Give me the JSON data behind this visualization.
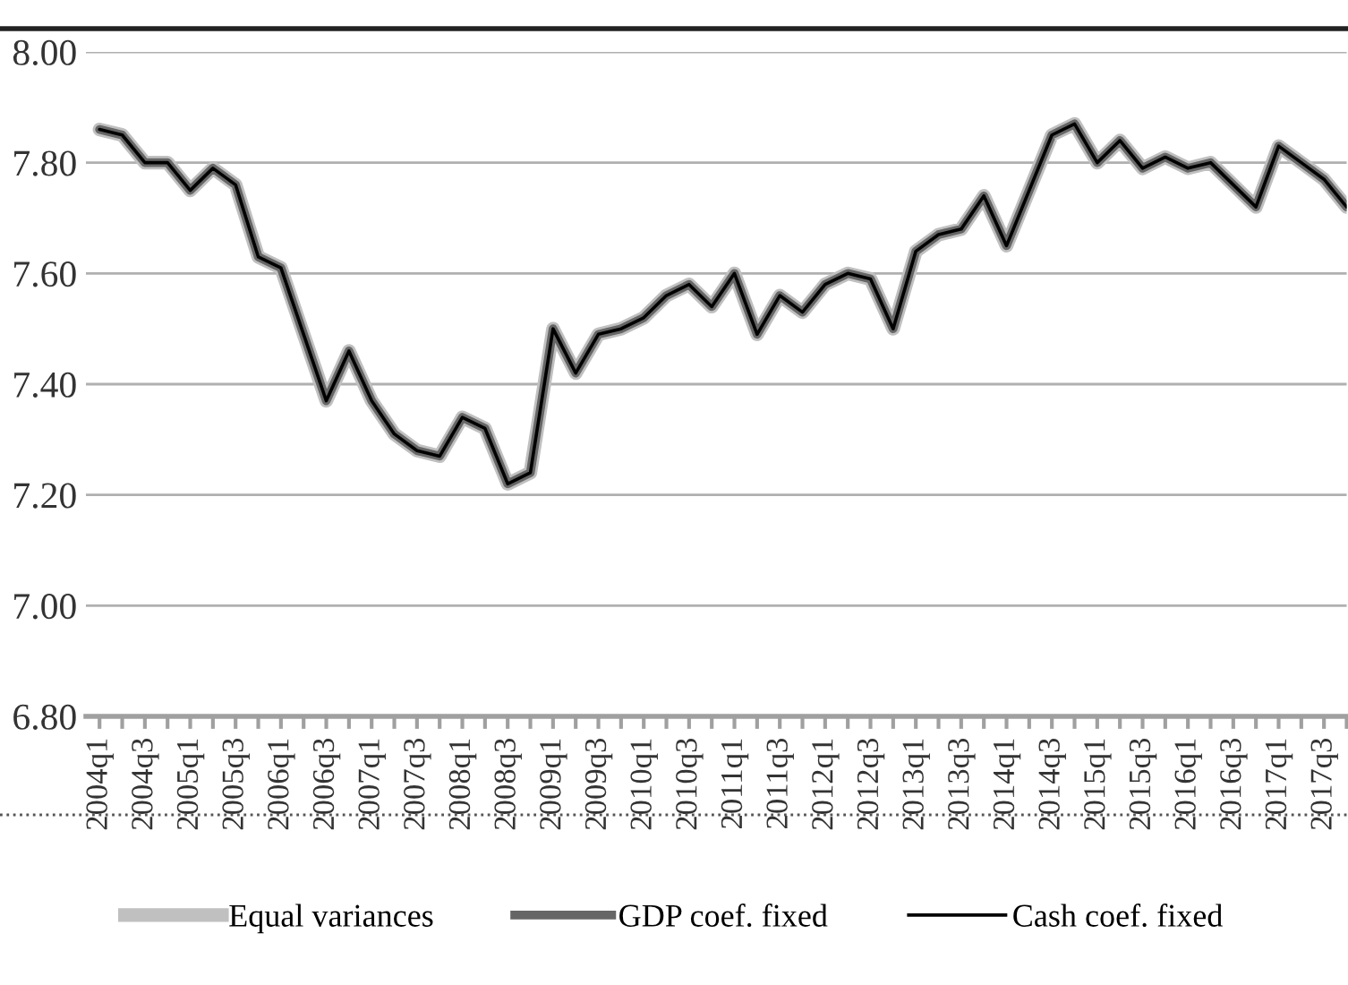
{
  "chart_data": {
    "type": "line",
    "categories": [
      "2004q1",
      null,
      "2004q3",
      null,
      "2005q1",
      null,
      "2005q3",
      null,
      "2006q1",
      null,
      "2006q3",
      null,
      "2007q1",
      null,
      "2007q3",
      null,
      "2008q1",
      null,
      "2008q3",
      null,
      "2009q1",
      null,
      "2009q3",
      null,
      "2010q1",
      null,
      "2010q3",
      null,
      "2011q1",
      null,
      "2011q3",
      null,
      "2012q1",
      null,
      "2012q3",
      null,
      "2013q1",
      null,
      "2013q3",
      null,
      "2014q1",
      null,
      "2014q3",
      null,
      "2015q1",
      null,
      "2015q3",
      null,
      "2016q1",
      null,
      "2016q3",
      null,
      "2017q1",
      null,
      "2017q3",
      null
    ],
    "series": [
      {
        "name": "Equal variances",
        "color": "#c0c0c0",
        "values": [
          7.86,
          7.85,
          7.8,
          7.8,
          7.75,
          7.79,
          7.76,
          7.63,
          7.61,
          7.49,
          7.37,
          7.46,
          7.37,
          7.31,
          7.28,
          7.27,
          7.34,
          7.32,
          7.22,
          7.24,
          7.5,
          7.42,
          7.49,
          7.5,
          7.52,
          7.56,
          7.58,
          7.54,
          7.6,
          7.49,
          7.56,
          7.53,
          7.58,
          7.6,
          7.59,
          7.5,
          7.64,
          7.67,
          7.68,
          7.74,
          7.65,
          7.75,
          7.85,
          7.87,
          7.8,
          7.84,
          7.79,
          7.81,
          7.79,
          7.8,
          7.76,
          7.72,
          7.83,
          7.8,
          7.77,
          7.72
        ]
      },
      {
        "name": "GDP coef. fixed",
        "color": "#666666",
        "values": [
          7.86,
          7.85,
          7.8,
          7.8,
          7.75,
          7.79,
          7.76,
          7.63,
          7.61,
          7.49,
          7.37,
          7.46,
          7.37,
          7.31,
          7.28,
          7.27,
          7.34,
          7.32,
          7.22,
          7.24,
          7.5,
          7.42,
          7.49,
          7.5,
          7.52,
          7.56,
          7.58,
          7.54,
          7.6,
          7.49,
          7.56,
          7.53,
          7.58,
          7.6,
          7.59,
          7.5,
          7.64,
          7.67,
          7.68,
          7.74,
          7.65,
          7.75,
          7.85,
          7.87,
          7.8,
          7.84,
          7.79,
          7.81,
          7.79,
          7.8,
          7.76,
          7.72,
          7.83,
          7.8,
          7.77,
          7.72
        ]
      },
      {
        "name": "Cash coef. fixed",
        "color": "#000000",
        "values": [
          7.86,
          7.85,
          7.8,
          7.8,
          7.75,
          7.79,
          7.76,
          7.63,
          7.61,
          7.49,
          7.37,
          7.46,
          7.37,
          7.31,
          7.28,
          7.27,
          7.34,
          7.32,
          7.22,
          7.24,
          7.5,
          7.42,
          7.49,
          7.5,
          7.52,
          7.56,
          7.58,
          7.54,
          7.6,
          7.49,
          7.56,
          7.53,
          7.58,
          7.6,
          7.59,
          7.5,
          7.64,
          7.67,
          7.68,
          7.74,
          7.65,
          7.75,
          7.85,
          7.87,
          7.8,
          7.84,
          7.79,
          7.81,
          7.79,
          7.8,
          7.76,
          7.72,
          7.83,
          7.8,
          7.77,
          7.72
        ]
      }
    ],
    "ylim": [
      6.8,
      8.0
    ],
    "yticks": [
      {
        "value": 6.8,
        "label": "6.80"
      },
      {
        "value": 7.0,
        "label": "7.00"
      },
      {
        "value": 7.2,
        "label": "7.20"
      },
      {
        "value": 7.4,
        "label": "7.40"
      },
      {
        "value": 7.6,
        "label": "7.60"
      },
      {
        "value": 7.8,
        "label": "7.80"
      },
      {
        "value": 8.0,
        "label": "8.00"
      }
    ],
    "grid": "y",
    "legend": "bottom",
    "marker": "none",
    "line_style": "solid"
  }
}
